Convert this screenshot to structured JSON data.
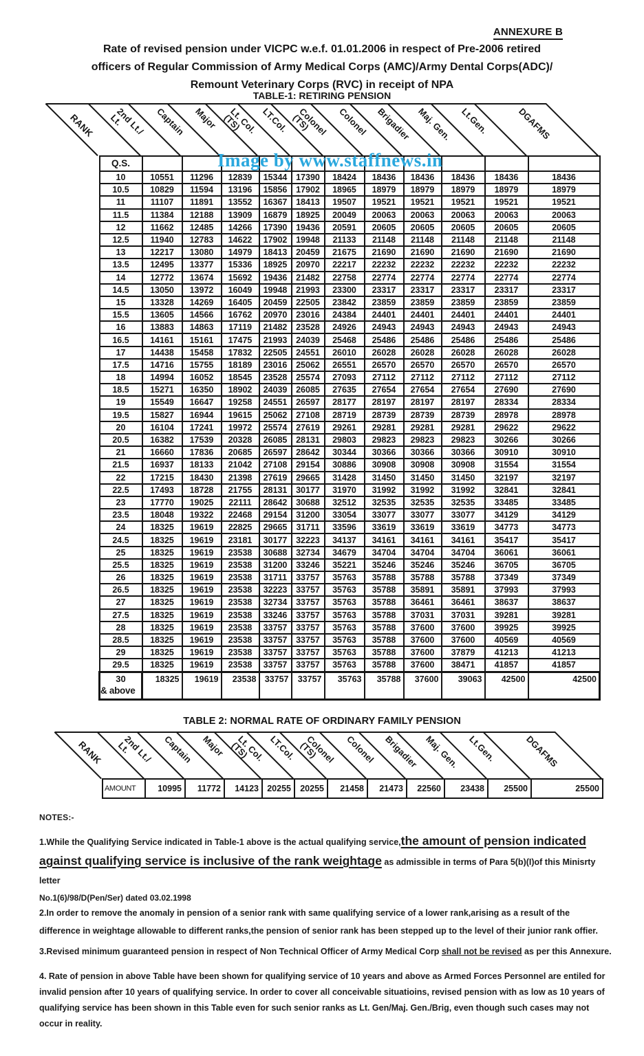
{
  "page": {
    "annexure": "ANNEXURE B",
    "title_line1": "Rate of revised pension under VICPC w.e.f. 01.01.2006 in  respect of Pre-2006 retired",
    "title_line2": "officers of   Regular Commission of Army Medical Corps (AMC)/Army Dental Corps(ADC)/",
    "title_line3": "Remount Veterinary Corps (RVC) in receipt of NPA",
    "watermark": "Image by www.staffnews.in",
    "watermark_color": "#2BA8DE",
    "ink_color": "#161616"
  },
  "table1": {
    "title": "TABLE-1: RETIRING PENSION",
    "corner": "RANK",
    "qs_header": "Q.S.",
    "columns": [
      "2nd Lt./\nLt.",
      "Captain",
      "Major",
      "Lt. Col.\n(TS)",
      "LT.Col.",
      "Colonel\n(TS)",
      "Colonel",
      "Brigadier",
      "Maj. Gen.",
      "Lt.Gen.",
      "DGAFMS"
    ],
    "rows": [
      {
        "qs": "10",
        "values": [
          10551,
          11296,
          12839,
          15344,
          17390,
          18424,
          18436,
          18436,
          18436,
          18436,
          18436
        ]
      },
      {
        "qs": "10.5",
        "values": [
          10829,
          11594,
          13196,
          15856,
          17902,
          18965,
          18979,
          18979,
          18979,
          18979,
          18979
        ]
      },
      {
        "qs": "11",
        "values": [
          11107,
          11891,
          13552,
          16367,
          18413,
          19507,
          19521,
          19521,
          19521,
          19521,
          19521
        ]
      },
      {
        "qs": "11.5",
        "values": [
          11384,
          12188,
          13909,
          16879,
          18925,
          20049,
          20063,
          20063,
          20063,
          20063,
          20063
        ]
      },
      {
        "qs": "12",
        "values": [
          11662,
          12485,
          14266,
          17390,
          19436,
          20591,
          20605,
          20605,
          20605,
          20605,
          20605
        ]
      },
      {
        "qs": "12.5",
        "values": [
          11940,
          12783,
          14622,
          17902,
          19948,
          21133,
          21148,
          21148,
          21148,
          21148,
          21148
        ]
      },
      {
        "qs": "13",
        "values": [
          12217,
          13080,
          14979,
          18413,
          20459,
          21675,
          21690,
          21690,
          21690,
          21690,
          21690
        ]
      },
      {
        "qs": "13.5",
        "values": [
          12495,
          13377,
          15336,
          18925,
          20970,
          22217,
          22232,
          22232,
          22232,
          22232,
          22232
        ]
      },
      {
        "qs": "14",
        "values": [
          12772,
          13674,
          15692,
          19436,
          21482,
          22758,
          22774,
          22774,
          22774,
          22774,
          22774
        ]
      },
      {
        "qs": "14.5",
        "values": [
          13050,
          13972,
          16049,
          19948,
          21993,
          23300,
          23317,
          23317,
          23317,
          23317,
          23317
        ]
      },
      {
        "qs": "15",
        "values": [
          13328,
          14269,
          16405,
          20459,
          22505,
          23842,
          23859,
          23859,
          23859,
          23859,
          23859
        ]
      },
      {
        "qs": "15.5",
        "values": [
          13605,
          14566,
          16762,
          20970,
          23016,
          24384,
          24401,
          24401,
          24401,
          24401,
          24401
        ]
      },
      {
        "qs": "16",
        "values": [
          13883,
          14863,
          17119,
          21482,
          23528,
          24926,
          24943,
          24943,
          24943,
          24943,
          24943
        ]
      },
      {
        "qs": "16.5",
        "values": [
          14161,
          15161,
          17475,
          21993,
          24039,
          25468,
          25486,
          25486,
          25486,
          25486,
          25486
        ]
      },
      {
        "qs": "17",
        "values": [
          14438,
          15458,
          17832,
          22505,
          24551,
          26010,
          26028,
          26028,
          26028,
          26028,
          26028
        ]
      },
      {
        "qs": "17.5",
        "values": [
          14716,
          15755,
          18189,
          23016,
          25062,
          26551,
          26570,
          26570,
          26570,
          26570,
          26570
        ]
      },
      {
        "qs": "18",
        "values": [
          14994,
          16052,
          18545,
          23528,
          25574,
          27093,
          27112,
          27112,
          27112,
          27112,
          27112
        ]
      },
      {
        "qs": "18.5",
        "values": [
          15271,
          16350,
          18902,
          24039,
          26085,
          27635,
          27654,
          27654,
          27654,
          27690,
          27690
        ]
      },
      {
        "qs": "19",
        "values": [
          15549,
          16647,
          19258,
          24551,
          26597,
          28177,
          28197,
          28197,
          28197,
          28334,
          28334
        ]
      },
      {
        "qs": "19.5",
        "values": [
          15827,
          16944,
          19615,
          25062,
          27108,
          28719,
          28739,
          28739,
          28739,
          28978,
          28978
        ]
      },
      {
        "qs": "20",
        "values": [
          16104,
          17241,
          19972,
          25574,
          27619,
          29261,
          29281,
          29281,
          29281,
          29622,
          29622
        ]
      },
      {
        "qs": "20.5",
        "values": [
          16382,
          17539,
          20328,
          26085,
          28131,
          29803,
          29823,
          29823,
          29823,
          30266,
          30266
        ]
      },
      {
        "qs": "21",
        "values": [
          16660,
          17836,
          20685,
          26597,
          28642,
          30344,
          30366,
          30366,
          30366,
          30910,
          30910
        ]
      },
      {
        "qs": "21.5",
        "values": [
          16937,
          18133,
          21042,
          27108,
          29154,
          30886,
          30908,
          30908,
          30908,
          31554,
          31554
        ]
      },
      {
        "qs": "22",
        "values": [
          17215,
          18430,
          21398,
          27619,
          29665,
          31428,
          31450,
          31450,
          31450,
          32197,
          32197
        ]
      },
      {
        "qs": "22.5",
        "values": [
          17493,
          18728,
          21755,
          28131,
          30177,
          31970,
          31992,
          31992,
          31992,
          32841,
          32841
        ]
      },
      {
        "qs": "23",
        "values": [
          17770,
          19025,
          22111,
          28642,
          30688,
          32512,
          32535,
          32535,
          32535,
          33485,
          33485
        ]
      },
      {
        "qs": "23.5",
        "values": [
          18048,
          19322,
          22468,
          29154,
          31200,
          33054,
          33077,
          33077,
          33077,
          34129,
          34129
        ]
      },
      {
        "qs": "24",
        "values": [
          18325,
          19619,
          22825,
          29665,
          31711,
          33596,
          33619,
          33619,
          33619,
          34773,
          34773
        ]
      },
      {
        "qs": "24.5",
        "values": [
          18325,
          19619,
          23181,
          30177,
          32223,
          34137,
          34161,
          34161,
          34161,
          35417,
          35417
        ]
      },
      {
        "qs": "25",
        "values": [
          18325,
          19619,
          23538,
          30688,
          32734,
          34679,
          34704,
          34704,
          34704,
          36061,
          36061
        ]
      },
      {
        "qs": "25.5",
        "values": [
          18325,
          19619,
          23538,
          31200,
          33246,
          35221,
          35246,
          35246,
          35246,
          36705,
          36705
        ]
      },
      {
        "qs": "26",
        "values": [
          18325,
          19619,
          23538,
          31711,
          33757,
          35763,
          35788,
          35788,
          35788,
          37349,
          37349
        ]
      },
      {
        "qs": "26.5",
        "values": [
          18325,
          19619,
          23538,
          32223,
          33757,
          35763,
          35788,
          35891,
          35891,
          37993,
          37993
        ]
      },
      {
        "qs": "27",
        "values": [
          18325,
          19619,
          23538,
          32734,
          33757,
          35763,
          35788,
          36461,
          36461,
          38637,
          38637
        ]
      },
      {
        "qs": "27.5",
        "values": [
          18325,
          19619,
          23538,
          33246,
          33757,
          35763,
          35788,
          37031,
          37031,
          39281,
          39281
        ]
      },
      {
        "qs": "28",
        "values": [
          18325,
          19619,
          23538,
          33757,
          33757,
          35763,
          35788,
          37600,
          37600,
          39925,
          39925
        ]
      },
      {
        "qs": "28.5",
        "values": [
          18325,
          19619,
          23538,
          33757,
          33757,
          35763,
          35788,
          37600,
          37600,
          40569,
          40569
        ]
      },
      {
        "qs": "29",
        "values": [
          18325,
          19619,
          23538,
          33757,
          33757,
          35763,
          35788,
          37600,
          37879,
          41213,
          41213
        ]
      },
      {
        "qs": "29.5",
        "values": [
          18325,
          19619,
          23538,
          33757,
          33757,
          35763,
          35788,
          37600,
          38471,
          41857,
          41857
        ]
      }
    ],
    "last_row": {
      "qs_line1": "30",
      "qs_line2": "& above",
      "values": [
        18325,
        19619,
        23538,
        33757,
        33757,
        35763,
        35788,
        37600,
        39063,
        42500,
        42500
      ]
    }
  },
  "table2": {
    "title": "TABLE 2: NORMAL RATE OF ORDINARY FAMILY PENSION",
    "corner": "RANK",
    "row_label": "AMOUNT",
    "columns": [
      "2nd Lt./\nLt.",
      "Captain",
      "Major",
      "Lt. Col.\n(TS)",
      "LT.Col.",
      "Colonel\n(TS)",
      "Colonel",
      "Brigadier",
      "Maj. Gen.",
      "Lt.Gen.",
      "DGAFMS"
    ],
    "values": [
      10995,
      11772,
      14123,
      20255,
      20255,
      21458,
      21473,
      22560,
      23438,
      25500,
      25500
    ]
  },
  "notes": {
    "heading": "NOTES:-",
    "note1_prefix": "1.While the Qualifying Service indicated in Table-1 above is the actual qualifying service,",
    "note1_underlined": "the amount of pension indicated against qualifying service is inclusive of the rank weightage",
    "note1_suffix": " as admissible in terms of Para 5(b)(I)of this Minisrty letter",
    "note1_ref": "No.1(6)/98/D(Pen/Ser) dated 03.02.1998",
    "note2": "2.In order to remove the anomaly in pension of a senior rank with same qualifying service of a lower rank,arising as a result of the difference in weightage allowable to different ranks,the pension of senior rank has been stepped up to the level of their junior rank offier.",
    "note3_prefix": "3.Revised minimum guaranteed pension in respect of Non Technical Officer of Army Medical Corp ",
    "note3_underlined": "shall not be revised",
    "note3_suffix": " as per this Annexure.",
    "note4": "4.  Rate of pension in above Table have been shown for qualifying service of 10 years and  above  as Armed Forces Personnel are entiled for invalid pension after 10 years of qualifying service. In order to cover all conceivable situatioins, revised pension with as low as 10 years of qualifying  service has been shown in this Table even for such senior ranks as Lt. Gen/Maj. Gen./Brig, even though such cases may not occur in reality."
  }
}
